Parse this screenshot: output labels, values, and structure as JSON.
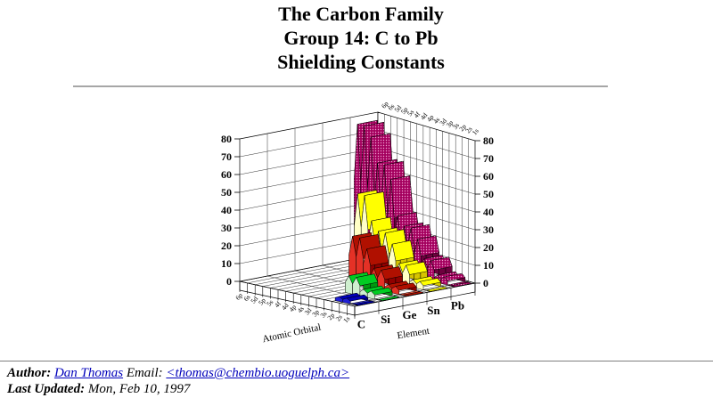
{
  "page": {
    "title_lines": [
      "The Carbon Family",
      "Group 14: C to Pb",
      "Shielding Constants"
    ]
  },
  "footer": {
    "author_label": "Author:",
    "author_link": "Dan Thomas",
    "email_label": "Email:",
    "email_link": "<thomas@chembio.uoguelph.ca>",
    "updated_label": "Last Updated:",
    "updated_value": "Mon, Feb 10, 1997"
  },
  "chart_data": {
    "type": "area",
    "style": "3d-ribbon",
    "title": "Shielding Constants",
    "xlabel": "Atomic Orbital",
    "series_axis_label": "Element",
    "ylabel": "",
    "ylim": [
      0,
      80
    ],
    "yticks": [
      0,
      10,
      20,
      30,
      40,
      50,
      60,
      70,
      80
    ],
    "grid": true,
    "legend": false,
    "categories": [
      "1s",
      "2s",
      "2p",
      "3s",
      "3p",
      "3d",
      "4s",
      "4p",
      "4d",
      "4f",
      "5s",
      "5p",
      "5d",
      "6s",
      "6p"
    ],
    "series": [
      {
        "name": "C",
        "color": "#1f1fd6",
        "colors": {
          "front": "#1f1fd6",
          "side": "#000090",
          "bevel_light": "#4040e8",
          "bevel_bright": "#0000b8"
        },
        "values": [
          0.31,
          2.75,
          2.75
        ]
      },
      {
        "name": "Si",
        "color": "#00cc22",
        "colors": {
          "front": "#cfefcf",
          "side": "#009910",
          "bevel_light": "#dff5df",
          "bevel_bright": "#00cc22"
        },
        "values": [
          0.31,
          4.15,
          4.15,
          9.85,
          9.85
        ]
      },
      {
        "name": "Ge",
        "color": "#e02818",
        "colors": {
          "front": "#e43126",
          "side": "#8f0000",
          "bevel_light": "#ed5b47",
          "bevel_bright": "#b01000"
        },
        "values": [
          0.31,
          4.15,
          4.15,
          11.25,
          11.25,
          21.15,
          26.35,
          26.35
        ]
      },
      {
        "name": "Sn",
        "color": "#ffff00",
        "colors": {
          "front": "#ffffc6",
          "side": "#d6c400",
          "bevel_light": "#ffffe0",
          "bevel_bright": "#ffff00"
        },
        "values": [
          0.31,
          4.15,
          4.15,
          11.25,
          11.25,
          21.15,
          26.35,
          26.35,
          31.15,
          44.35,
          44.35
        ]
      },
      {
        "name": "Pb",
        "color": "#a4005e",
        "colors": {
          "front": "pattern",
          "side": "#6e003e",
          "bevel_light": "pattern",
          "bevel_bright": "pattern"
        },
        "values": [
          0.31,
          4.15,
          4.15,
          11.25,
          11.25,
          21.15,
          26.35,
          26.35,
          31.15,
          50.55,
          57.65,
          57.65,
          71.15,
          76.35,
          76.35
        ]
      }
    ],
    "pattern": {
      "bg": "#a4005e",
      "dot": "#f0a0d0"
    }
  }
}
